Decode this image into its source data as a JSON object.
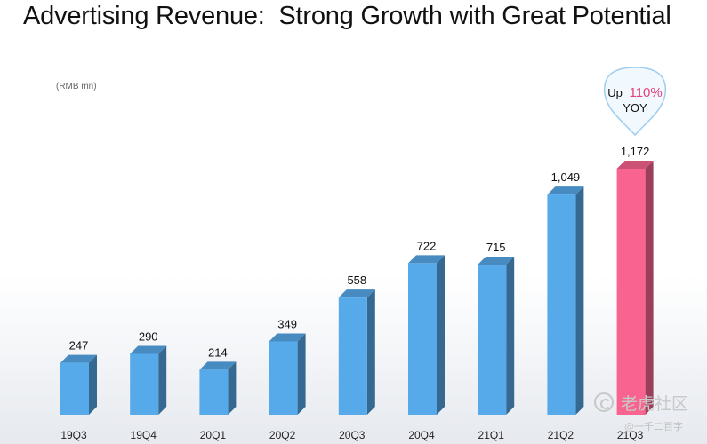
{
  "title": "Advertising Revenue:  Strong Growth with Great Potential",
  "unit": "(RMB mn)",
  "callout": {
    "prefix": "Up",
    "value": "110%",
    "suffix": "YOY"
  },
  "watermark": {
    "name": "老虎社区",
    "handle": "@一千二百字"
  },
  "colors": {
    "bar": "#57aaea",
    "bar_highlight": "#f8648f",
    "callout_value": "#e8407a"
  },
  "chart_data": {
    "type": "bar",
    "categories": [
      "19Q3",
      "19Q4",
      "20Q1",
      "20Q2",
      "20Q3",
      "20Q4",
      "21Q1",
      "21Q2",
      "21Q3"
    ],
    "values": [
      247,
      290,
      214,
      349,
      558,
      722,
      715,
      1049,
      1172
    ],
    "data_labels": [
      "247",
      "290",
      "214",
      "349",
      "558",
      "722",
      "715",
      "1,049",
      "1,172"
    ],
    "highlight_index": 8,
    "ylim": [
      0,
      1172
    ],
    "grid": false
  }
}
